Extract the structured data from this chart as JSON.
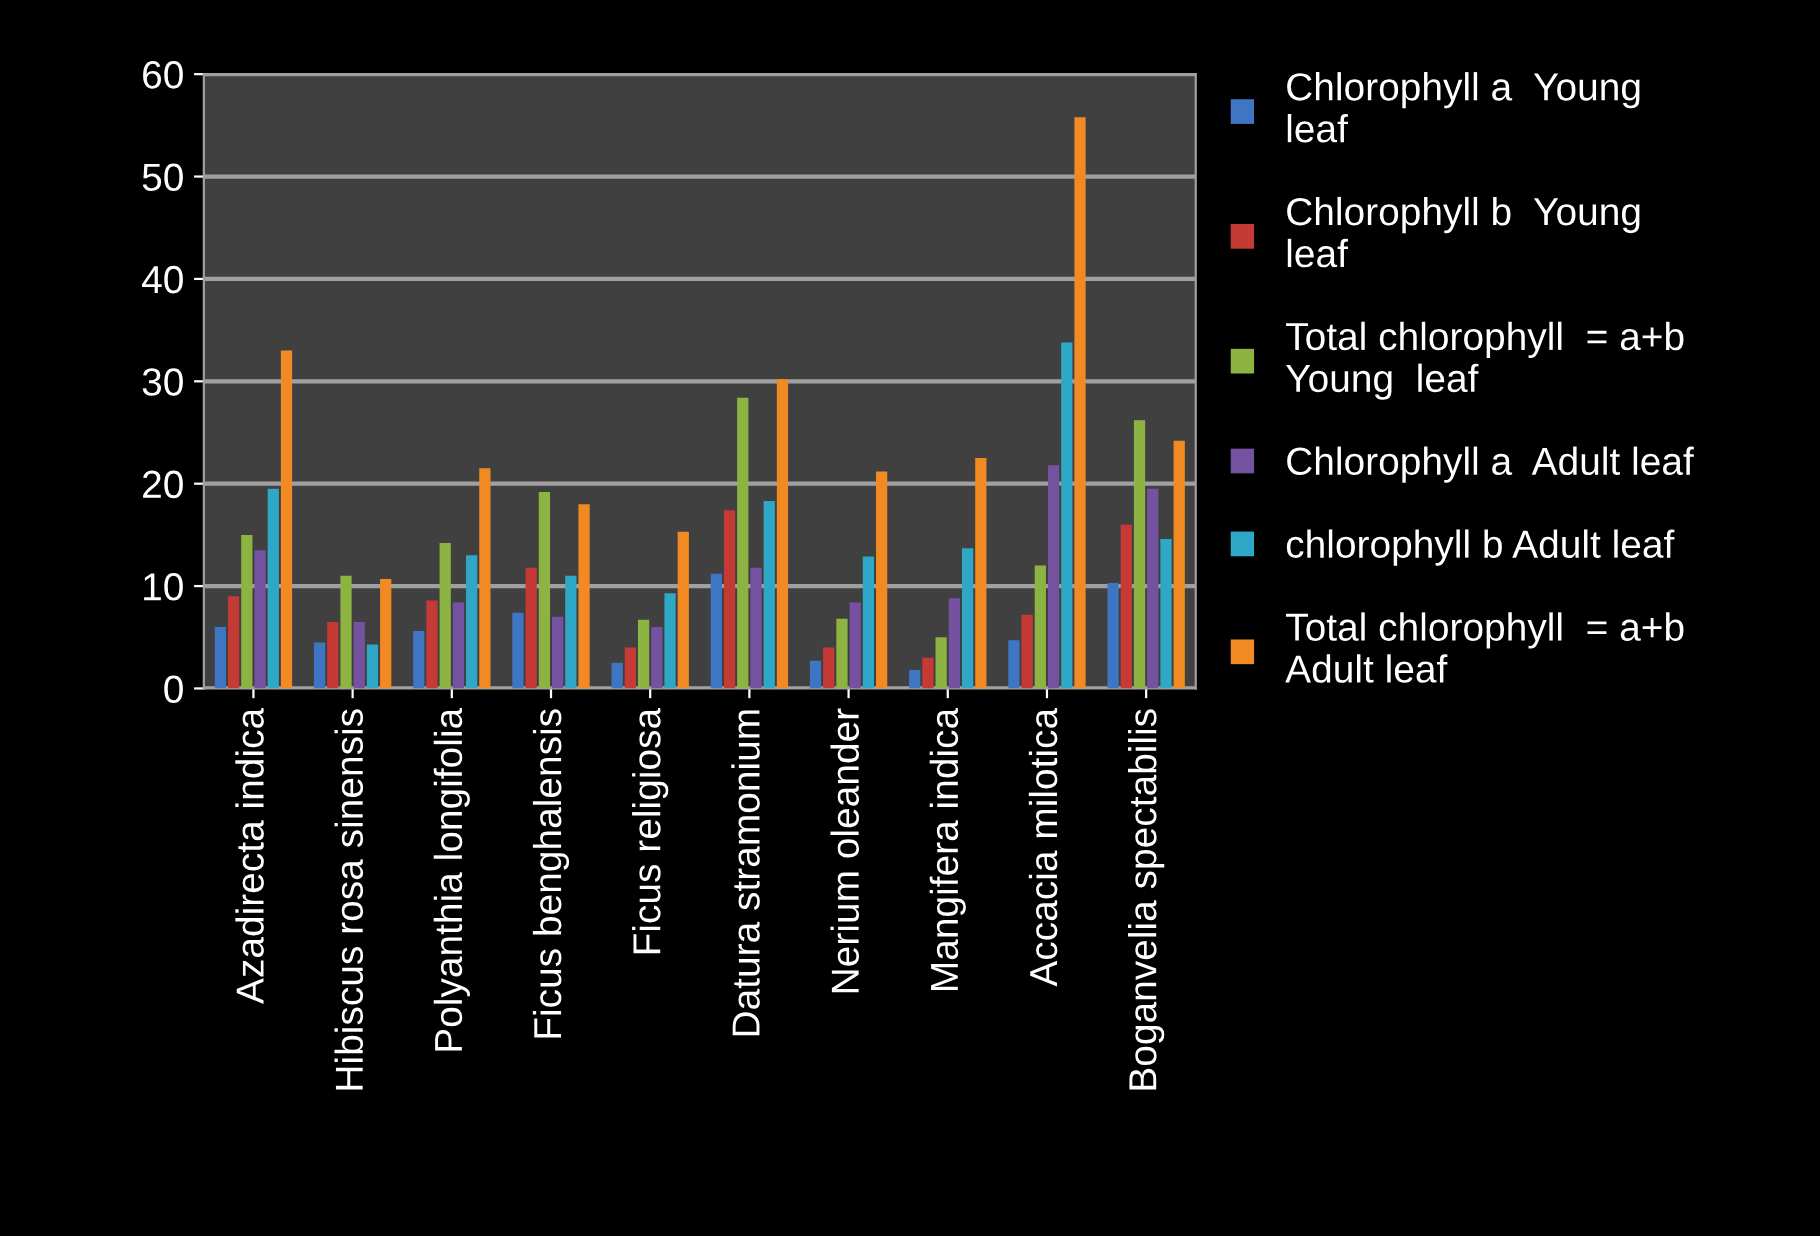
{
  "chart_data": {
    "type": "bar",
    "categories": [
      "Azadirecta indica",
      "Hibiscus rosa sinensis",
      "Polyanthia longifolia",
      "Ficus benghalensis",
      "Ficus religiosa",
      "Datura stramonium",
      "Nerium oleander",
      "Mangifera indica",
      "Accacia milotica",
      "Boganvelia spectabilis"
    ],
    "series": [
      {
        "name": "Chlorophyll a  Young\nleaf",
        "color": "#3f76c4",
        "values": [
          6,
          4.5,
          5.6,
          7.4,
          2.5,
          11.2,
          2.7,
          1.8,
          4.7,
          10.3
        ]
      },
      {
        "name": "Chlorophyll b  Young\nleaf",
        "color": "#c63a36",
        "values": [
          9,
          6.5,
          8.6,
          11.8,
          4,
          17.4,
          4,
          3,
          7.2,
          16
        ]
      },
      {
        "name": "Total chlorophyll  = a+b\nYoung  leaf",
        "color": "#8db443",
        "values": [
          15,
          11,
          14.2,
          19.2,
          6.7,
          28.4,
          6.8,
          5,
          12,
          26.2
        ]
      },
      {
        "name": "Chlorophyll a  Adult leaf",
        "color": "#7452a0",
        "values": [
          13.5,
          6.5,
          8.4,
          7,
          6,
          11.8,
          8.4,
          8.8,
          21.8,
          19.5
        ]
      },
      {
        "name": "chlorophyll b Adult leaf",
        "color": "#2fa7c6",
        "values": [
          19.5,
          4.3,
          13,
          11,
          9.3,
          18.3,
          12.9,
          13.7,
          33.8,
          14.6
        ]
      },
      {
        "name": "Total chlorophyll  = a+b\nAdult leaf",
        "color": "#f28a23",
        "values": [
          33,
          10.7,
          21.5,
          18,
          15.3,
          30.2,
          21.2,
          22.5,
          55.8,
          24.2
        ]
      }
    ],
    "ylim": [
      0,
      60
    ],
    "yticks": [
      0,
      10,
      20,
      30,
      40,
      50,
      60
    ],
    "grid": "y",
    "legend": "right"
  }
}
